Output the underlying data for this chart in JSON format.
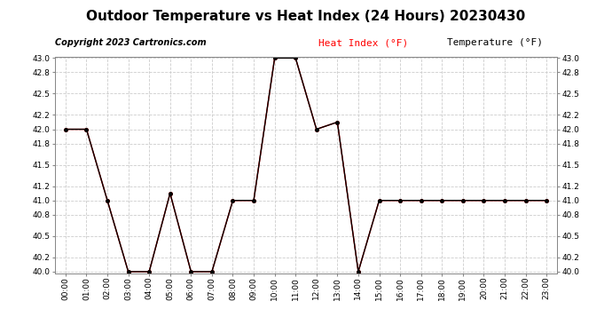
{
  "title": "Outdoor Temperature vs Heat Index (24 Hours) 20230430",
  "copyright": "Copyright 2023 Cartronics.com",
  "legend_heat": "Heat Index (°F)",
  "legend_temp": "Temperature (°F)",
  "hours": [
    "00:00",
    "01:00",
    "02:00",
    "03:00",
    "04:00",
    "05:00",
    "06:00",
    "07:00",
    "08:00",
    "09:00",
    "10:00",
    "11:00",
    "12:00",
    "13:00",
    "14:00",
    "15:00",
    "16:00",
    "17:00",
    "18:00",
    "19:00",
    "20:00",
    "21:00",
    "22:00",
    "23:00"
  ],
  "heat_index": [
    42.0,
    42.0,
    41.0,
    40.0,
    40.0,
    41.1,
    40.0,
    40.0,
    41.0,
    41.0,
    43.0,
    43.0,
    42.0,
    42.1,
    40.0,
    41.0,
    41.0,
    41.0,
    41.0,
    41.0,
    41.0,
    41.0,
    41.0,
    41.0
  ],
  "temperature": [
    42.0,
    42.0,
    41.0,
    40.0,
    40.0,
    41.1,
    40.0,
    40.0,
    41.0,
    41.0,
    43.0,
    43.0,
    42.0,
    42.1,
    40.0,
    41.0,
    41.0,
    41.0,
    41.0,
    41.0,
    41.0,
    41.0,
    41.0,
    41.0
  ],
  "heat_color": "#ff0000",
  "temp_color": "#000000",
  "ylim_min": 40.0,
  "ylim_max": 43.0,
  "yticks": [
    40.0,
    40.2,
    40.5,
    40.8,
    41.0,
    41.2,
    41.5,
    41.8,
    42.0,
    42.2,
    42.5,
    42.8,
    43.0
  ],
  "background_color": "#ffffff",
  "grid_color": "#cccccc",
  "title_fontsize": 11,
  "legend_fontsize": 8,
  "copyright_fontsize": 7
}
